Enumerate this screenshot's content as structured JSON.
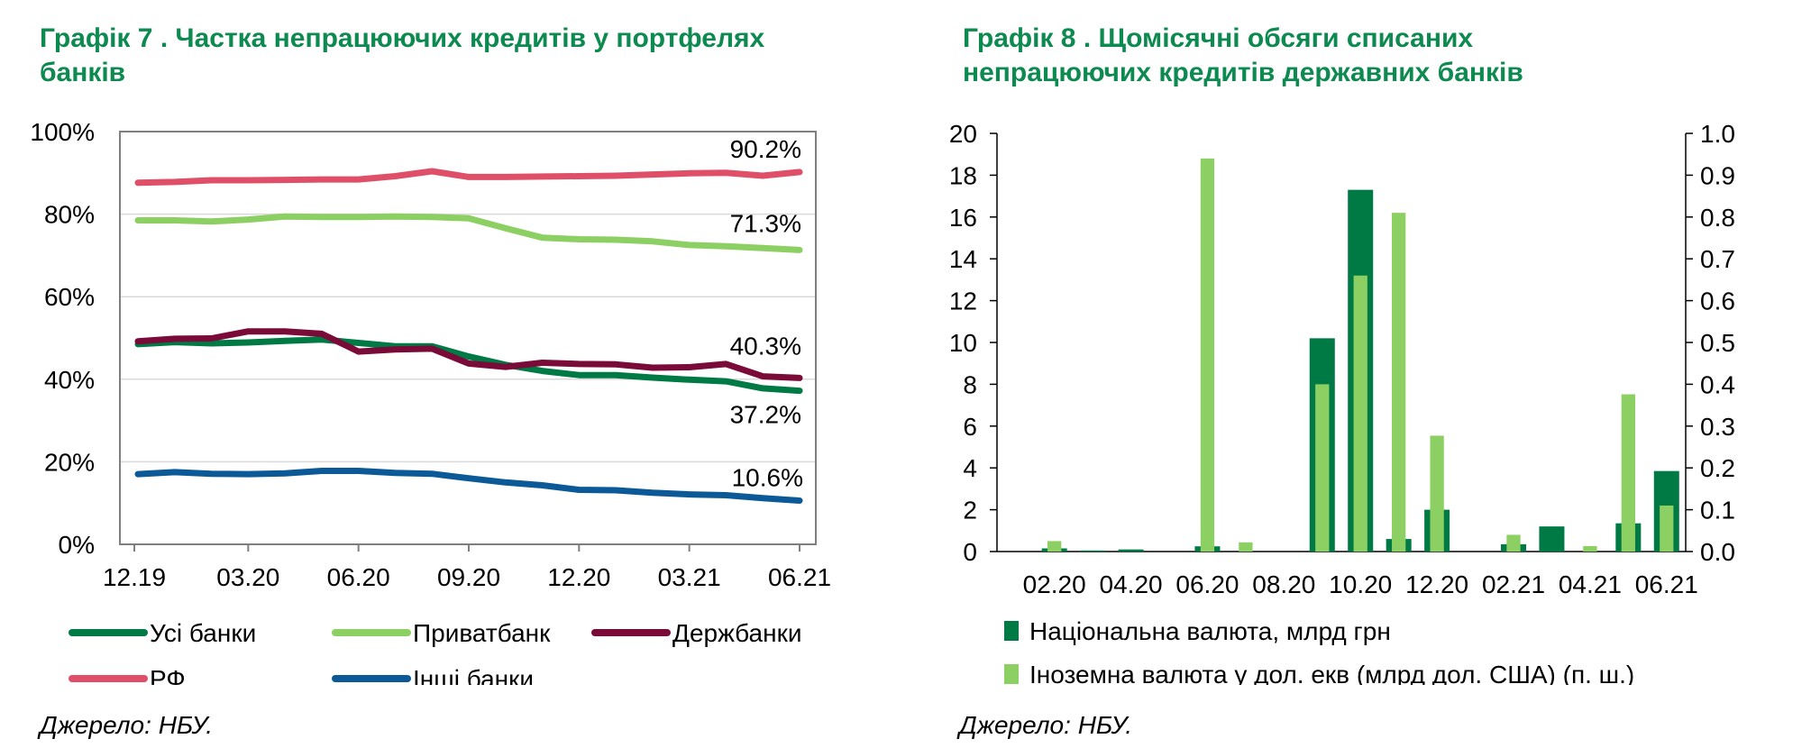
{
  "charts": {
    "left": {
      "title": "Графік 7 . Частка непрацюючих кредитів у портфелях\nбанків",
      "source": "Джерело: НБУ."
    },
    "right": {
      "title": "Графік 8 . Щомісячні обсяги списаних\nнепрацюючих кредитів державних банків",
      "source": "Джерело: НБУ."
    }
  },
  "chart_data": [
    {
      "type": "line",
      "title": "Графік 7 . Частка непрацюючих кредитів у портфелях банків",
      "ylim": [
        0,
        100
      ],
      "y_ticks": [
        "0%",
        "20%",
        "40%",
        "60%",
        "80%",
        "100%"
      ],
      "x_tick_labels": [
        "12.19",
        "03.20",
        "06.20",
        "09.20",
        "12.20",
        "03.21",
        "06.21"
      ],
      "x": [
        "12.19",
        "01.20",
        "02.20",
        "03.20",
        "04.20",
        "05.20",
        "06.20",
        "07.20",
        "08.20",
        "09.20",
        "10.20",
        "11.20",
        "12.20",
        "01.21",
        "02.21",
        "03.21",
        "04.21",
        "05.21",
        "06.21"
      ],
      "grid": true,
      "legend_position": "bottom",
      "series": [
        {
          "name": "Усі банки",
          "color": "#007a45",
          "values": [
            48.5,
            49.0,
            48.7,
            48.9,
            49.3,
            49.6,
            48.8,
            48.0,
            48.0,
            45.5,
            43.5,
            42.0,
            41.0,
            41.0,
            40.4,
            39.9,
            39.5,
            37.8,
            37.2
          ]
        },
        {
          "name": "Приватбанк",
          "color": "#8ccf63",
          "values": [
            78.5,
            78.5,
            78.2,
            78.7,
            79.4,
            79.3,
            79.3,
            79.4,
            79.3,
            79.0,
            76.6,
            74.3,
            73.9,
            73.8,
            73.4,
            72.5,
            72.2,
            71.8,
            71.3
          ]
        },
        {
          "name": "Держбанки",
          "color": "#7a0a37",
          "values": [
            49.2,
            49.8,
            49.9,
            51.6,
            51.6,
            51.0,
            46.7,
            47.2,
            47.4,
            43.8,
            43.0,
            44.0,
            43.7,
            43.6,
            42.8,
            42.9,
            43.7,
            40.7,
            40.3
          ]
        },
        {
          "name": "РФ",
          "color": "#df5068",
          "values": [
            87.6,
            87.8,
            88.2,
            88.2,
            88.3,
            88.4,
            88.4,
            89.2,
            90.4,
            89.0,
            89.0,
            89.1,
            89.2,
            89.3,
            89.6,
            89.9,
            90.0,
            89.3,
            90.2
          ]
        },
        {
          "name": "Інші банки",
          "color": "#0b5a97",
          "values": [
            17.0,
            17.5,
            17.1,
            17.0,
            17.2,
            17.8,
            17.8,
            17.3,
            17.1,
            16.0,
            15.0,
            14.3,
            13.2,
            13.1,
            12.5,
            12.1,
            11.9,
            11.2,
            10.6
          ]
        }
      ],
      "end_labels": [
        "90.2%",
        "71.3%",
        "40.3%",
        "37.2%",
        "10.6%"
      ]
    },
    {
      "type": "bar",
      "title": "Графік 8 . Щомісячні обсяги списаних непрацюючих кредитів державних банків",
      "categories": [
        "01.20",
        "02.20",
        "03.20",
        "04.20",
        "05.20",
        "06.20",
        "07.20",
        "08.20",
        "09.20",
        "10.20",
        "11.20",
        "12.20",
        "01.21",
        "02.21",
        "03.21",
        "04.21",
        "05.21",
        "06.21"
      ],
      "x_tick_labels": [
        "02.20",
        "04.20",
        "06.20",
        "08.20",
        "10.20",
        "12.20",
        "02.21",
        "04.21",
        "06.21"
      ],
      "ylim": [
        0,
        20
      ],
      "y_ticks": [
        "0",
        "2",
        "4",
        "6",
        "8",
        "10",
        "12",
        "14",
        "16",
        "18",
        "20"
      ],
      "y2lim": [
        0,
        1.0
      ],
      "y2_ticks": [
        "0.0",
        "0.1",
        "0.2",
        "0.3",
        "0.4",
        "0.5",
        "0.6",
        "0.7",
        "0.8",
        "0.9",
        "1.0"
      ],
      "legend_position": "bottom",
      "series": [
        {
          "name": "Національна валюта, млрд грн",
          "color": "#007a45",
          "axis": "left",
          "values": [
            0.0,
            0.15,
            0.05,
            0.1,
            0.0,
            0.25,
            0.0,
            0.0,
            10.2,
            17.3,
            0.6,
            2.0,
            0.0,
            0.35,
            1.2,
            0.0,
            1.35,
            3.85
          ]
        },
        {
          "name": "Іноземна валюта у дол. екв (млрд дол.  США) (п. ш.)",
          "color": "#8ccf63",
          "axis": "right",
          "values": [
            0.0,
            0.025,
            0.0,
            0.0,
            0.0,
            0.94,
            0.022,
            0.0,
            0.4,
            0.66,
            0.81,
            0.277,
            0.0,
            0.04,
            0.0,
            0.013,
            0.376,
            0.11
          ]
        }
      ]
    }
  ]
}
